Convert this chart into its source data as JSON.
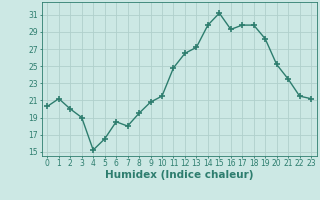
{
  "x": [
    0,
    1,
    2,
    3,
    4,
    5,
    6,
    7,
    8,
    9,
    10,
    11,
    12,
    13,
    14,
    15,
    16,
    17,
    18,
    19,
    20,
    21,
    22,
    23
  ],
  "y": [
    20.3,
    21.2,
    20.0,
    19.0,
    15.2,
    16.5,
    18.5,
    18.0,
    19.5,
    20.8,
    21.5,
    24.8,
    26.5,
    27.2,
    29.8,
    31.2,
    29.3,
    29.8,
    29.8,
    28.2,
    25.2,
    23.5,
    21.5,
    21.2
  ],
  "line_color": "#2d7d6e",
  "marker": "+",
  "markersize": 4,
  "markeredgewidth": 1.2,
  "bg_color": "#cce8e4",
  "grid_color_major": "#b0d0cc",
  "grid_color_minor": "#c4deda",
  "xlabel": "Humidex (Indice chaleur)",
  "ylim": [
    14.5,
    32.5
  ],
  "xlim": [
    -0.5,
    23.5
  ],
  "yticks": [
    15,
    17,
    19,
    21,
    23,
    25,
    27,
    29,
    31
  ],
  "xticks": [
    0,
    1,
    2,
    3,
    4,
    5,
    6,
    7,
    8,
    9,
    10,
    11,
    12,
    13,
    14,
    15,
    16,
    17,
    18,
    19,
    20,
    21,
    22,
    23
  ],
  "tick_label_size": 5.5,
  "xlabel_size": 7.5,
  "linewidth": 1.0
}
